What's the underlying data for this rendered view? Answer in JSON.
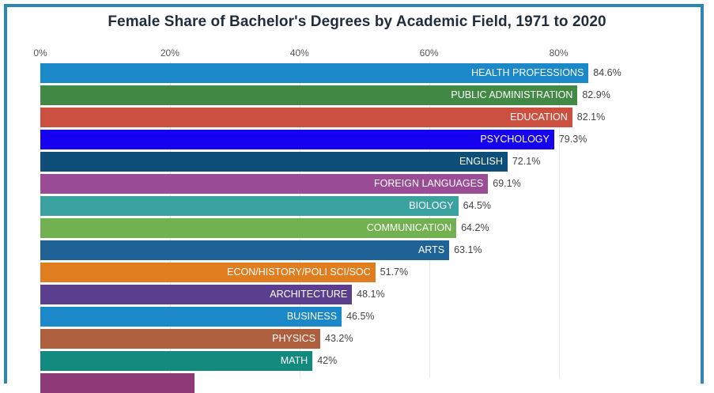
{
  "chart_data": {
    "type": "bar",
    "orientation": "horizontal",
    "title": "Female Share of Bachelor's Degrees by Academic Field, 1971 to 2020",
    "xlabel": "",
    "ylabel": "",
    "xlim": [
      0,
      100
    ],
    "x_ticks": [
      "0%",
      "20%",
      "40%",
      "60%",
      "80%"
    ],
    "grid": true,
    "legend": "none",
    "categories": [
      "HEALTH PROFESSIONS",
      "PUBLIC ADMINISTRATION",
      "EDUCATION",
      "PSYCHOLOGY",
      "ENGLISH",
      "FOREIGN LANGUAGES",
      "BIOLOGY",
      "COMMUNICATION",
      "ARTS",
      "ECON/HISTORY/POLI SCI/SOC",
      "ARCHITECTURE",
      "BUSINESS",
      "PHYSICS",
      "MATH"
    ],
    "values": [
      84.6,
      82.9,
      82.1,
      79.3,
      72.1,
      69.1,
      64.5,
      64.2,
      63.1,
      51.7,
      48.1,
      46.5,
      43.2,
      42
    ],
    "value_labels": [
      "84.6%",
      "82.9%",
      "82.1%",
      "79.3%",
      "72.1%",
      "69.1%",
      "64.5%",
      "64.2%",
      "63.1%",
      "51.7%",
      "48.1%",
      "46.5%",
      "43.2%",
      "42%"
    ],
    "colors": [
      "#1a88c9",
      "#418945",
      "#cc5040",
      "#1600f0",
      "#0d4f78",
      "#9b4c97",
      "#3aa3a0",
      "#72b14f",
      "#1f6296",
      "#e07d1e",
      "#5b3f8e",
      "#1a88c9",
      "#ae5f3e",
      "#138a7e"
    ],
    "partial_bar": {
      "color": "#8e3a77",
      "approx_value": 23.8
    }
  },
  "header": {
    "title": "Female Share of Bachelor's Degrees by Academic Field, 1971 to 2020"
  },
  "axis": {
    "ticks": [
      {
        "label": "0%",
        "value": 0
      },
      {
        "label": "20%",
        "value": 20
      },
      {
        "label": "40%",
        "value": 40
      },
      {
        "label": "60%",
        "value": 60
      },
      {
        "label": "80%",
        "value": 80
      }
    ]
  },
  "bars": [
    {
      "label": "HEALTH PROFESSIONS",
      "value": 84.6,
      "value_label": "84.6%",
      "color": "#1a88c9"
    },
    {
      "label": "PUBLIC ADMINISTRATION",
      "value": 82.9,
      "value_label": "82.9%",
      "color": "#418945"
    },
    {
      "label": "EDUCATION",
      "value": 82.1,
      "value_label": "82.1%",
      "color": "#cc5040"
    },
    {
      "label": "PSYCHOLOGY",
      "value": 79.3,
      "value_label": "79.3%",
      "color": "#1600f0"
    },
    {
      "label": "ENGLISH",
      "value": 72.1,
      "value_label": "72.1%",
      "color": "#0d4f78"
    },
    {
      "label": "FOREIGN LANGUAGES",
      "value": 69.1,
      "value_label": "69.1%",
      "color": "#9b4c97"
    },
    {
      "label": "BIOLOGY",
      "value": 64.5,
      "value_label": "64.5%",
      "color": "#3aa3a0"
    },
    {
      "label": "COMMUNICATION",
      "value": 64.2,
      "value_label": "64.2%",
      "color": "#72b14f"
    },
    {
      "label": "ARTS",
      "value": 63.1,
      "value_label": "63.1%",
      "color": "#1f6296"
    },
    {
      "label": "ECON/HISTORY/POLI SCI/SOC",
      "value": 51.7,
      "value_label": "51.7%",
      "color": "#e07d1e"
    },
    {
      "label": "ARCHITECTURE",
      "value": 48.1,
      "value_label": "48.1%",
      "color": "#5b3f8e"
    },
    {
      "label": "BUSINESS",
      "value": 46.5,
      "value_label": "46.5%",
      "color": "#1a88c9"
    },
    {
      "label": "PHYSICS",
      "value": 43.2,
      "value_label": "43.2%",
      "color": "#ae5f3e"
    },
    {
      "label": "MATH",
      "value": 42,
      "value_label": "42%",
      "color": "#138a7e"
    }
  ],
  "colors": {
    "frame": "#2e86b5",
    "title": "#1f2d3d",
    "grid": "#e6e6e6"
  }
}
